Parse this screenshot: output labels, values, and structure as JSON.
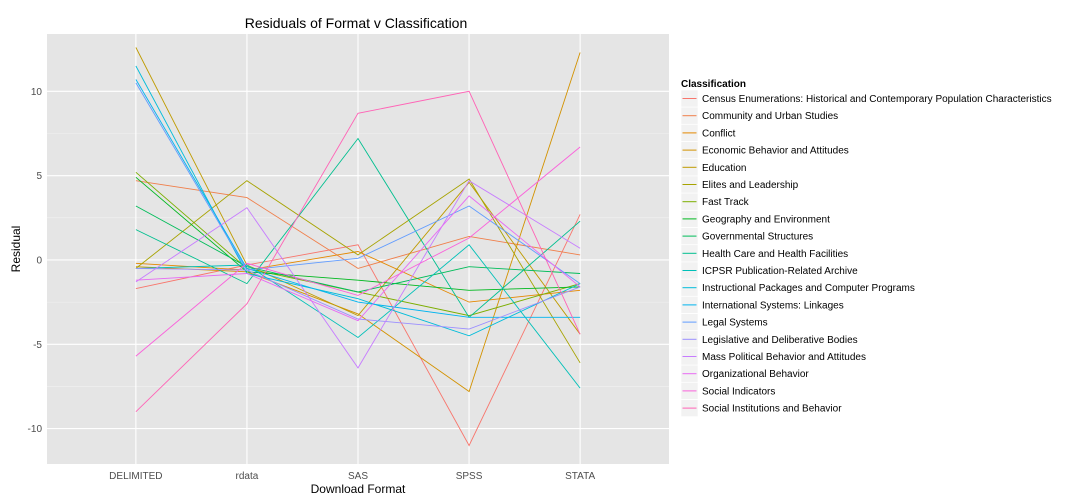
{
  "chart_data": {
    "type": "line",
    "title": "Residuals of Format v Classification",
    "xlabel": "Download Format",
    "ylabel": "Residual",
    "categories": [
      "DELIMITED",
      "rdata",
      "SAS",
      "SPSS",
      "STATA"
    ],
    "ylim": [
      -12.1,
      13.4
    ],
    "yticks": [
      -10,
      -5,
      0,
      5,
      10
    ],
    "grid": true,
    "legend": {
      "title": "Classification",
      "placement": "right"
    },
    "series": [
      {
        "name": "Census Enumerations: Historical and Contemporary Population Characteristics",
        "color": "#F8766D",
        "values": [
          -1.7,
          -0.3,
          0.9,
          -11.0,
          2.7
        ]
      },
      {
        "name": "Community and Urban Studies",
        "color": "#F07F4A",
        "values": [
          4.7,
          3.7,
          -0.5,
          1.4,
          0.3
        ]
      },
      {
        "name": "Conflict",
        "color": "#E48800",
        "values": [
          -0.2,
          -0.6,
          0.5,
          -2.5,
          -1.8
        ]
      },
      {
        "name": "Economic Behavior and Attitudes",
        "color": "#D39200",
        "values": [
          -0.4,
          -0.7,
          -3.2,
          -7.8,
          12.3
        ]
      },
      {
        "name": "Education",
        "color": "#BF9B00",
        "values": [
          12.6,
          -0.3,
          -3.3,
          4.6,
          -4.4
        ]
      },
      {
        "name": "Elites and Leadership",
        "color": "#A7A300",
        "values": [
          -0.5,
          4.7,
          0.3,
          4.8,
          -6.1
        ]
      },
      {
        "name": "Fast Track",
        "color": "#7CAE00",
        "values": [
          5.2,
          -0.5,
          -1.9,
          -3.3,
          -1.4
        ]
      },
      {
        "name": "Geography and Environment",
        "color": "#00B81F",
        "values": [
          4.9,
          -0.7,
          -1.2,
          -1.8,
          -1.6
        ]
      },
      {
        "name": "Governmental Structures",
        "color": "#00BC59",
        "values": [
          3.2,
          -0.4,
          -1.9,
          -0.4,
          -0.8
        ]
      },
      {
        "name": "Health Care and Health Facilities",
        "color": "#00BF8F",
        "values": [
          1.8,
          -1.4,
          7.2,
          -3.4,
          2.3
        ]
      },
      {
        "name": "ICPSR Publication-Related Archive",
        "color": "#00C0B8",
        "values": [
          -0.5,
          -0.3,
          -4.6,
          0.9,
          -7.6
        ]
      },
      {
        "name": "Instructional Packages and Computer Programs",
        "color": "#00BCDA",
        "values": [
          11.5,
          -0.8,
          -2.3,
          -4.5,
          -1.4
        ]
      },
      {
        "name": "International Systems: Linkages",
        "color": "#00B4EF",
        "values": [
          10.7,
          -0.5,
          -2.5,
          -3.4,
          -3.4
        ]
      },
      {
        "name": "Legal Systems",
        "color": "#619CFF",
        "values": [
          10.5,
          -0.6,
          0.1,
          3.2,
          -1.4
        ]
      },
      {
        "name": "Legislative and Deliberative Bodies",
        "color": "#9B8EFF",
        "values": [
          -0.5,
          -0.6,
          -3.5,
          -4.1,
          -1.6
        ]
      },
      {
        "name": "Mass Political Behavior and Attitudes",
        "color": "#C77CFF",
        "values": [
          -1.3,
          3.1,
          -6.4,
          4.7,
          0.7
        ]
      },
      {
        "name": "Organizational Behavior",
        "color": "#E76BF3",
        "values": [
          -1.2,
          -0.8,
          -3.6,
          3.8,
          -1.6
        ]
      },
      {
        "name": "Social Indicators",
        "color": "#FA62DB",
        "values": [
          -5.7,
          -0.2,
          -2.1,
          1.3,
          6.7
        ]
      },
      {
        "name": "Social Institutions and Behavior",
        "color": "#FF63B6",
        "values": [
          -9.0,
          -2.6,
          8.7,
          10.0,
          -4.4
        ]
      }
    ]
  }
}
